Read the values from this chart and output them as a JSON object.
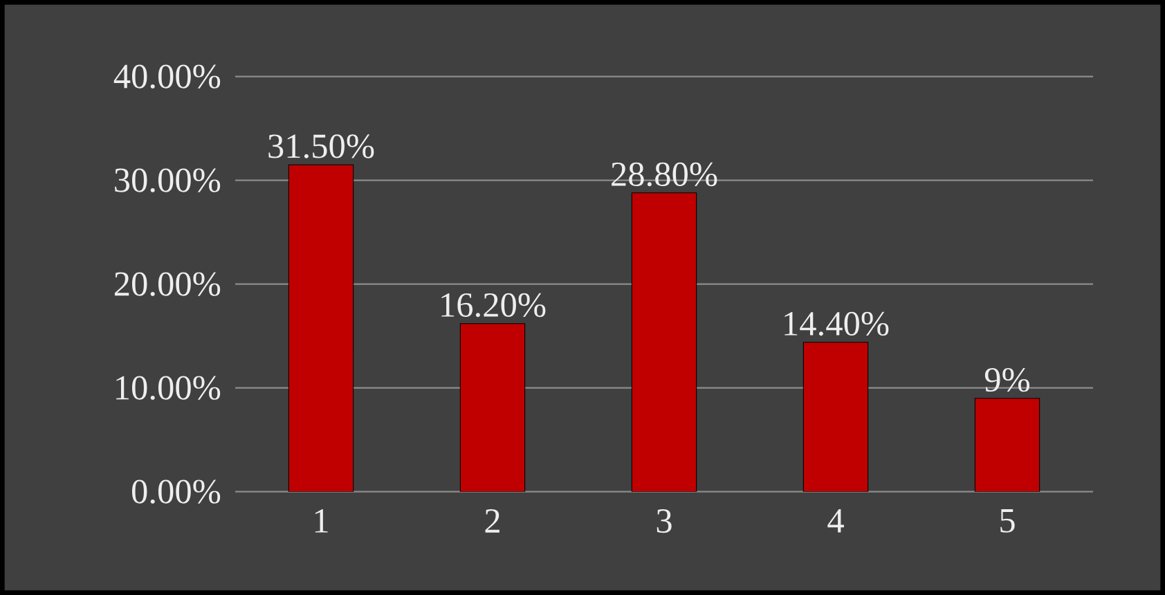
{
  "chart_data": {
    "type": "bar",
    "categories": [
      "1",
      "2",
      "3",
      "4",
      "5"
    ],
    "values": [
      31.5,
      16.2,
      28.8,
      14.4,
      9
    ],
    "value_labels": [
      "31.50%",
      "16.20%",
      "28.80%",
      "14.40%",
      "9%"
    ],
    "color": "#c00000",
    "ylim": [
      0,
      40
    ],
    "yticks": [
      {
        "value": 0,
        "label": "0.00%"
      },
      {
        "value": 10,
        "label": "10.00%"
      },
      {
        "value": 20,
        "label": "20.00%"
      },
      {
        "value": 30,
        "label": "30.00%"
      },
      {
        "value": 40,
        "label": "40.00%"
      }
    ],
    "grid": "y"
  }
}
